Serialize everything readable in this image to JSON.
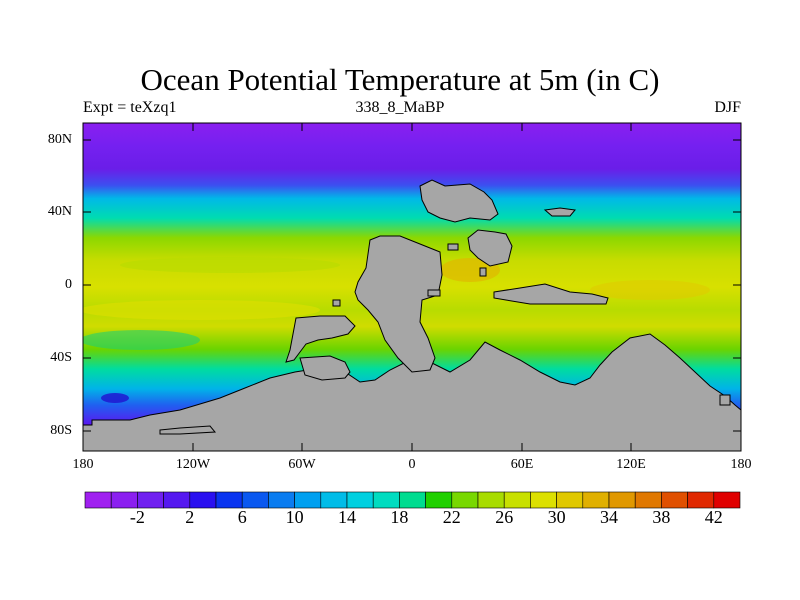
{
  "title": "Ocean Potential Temperature at 5m (in C)",
  "subtitle_left": "Expt = teXzq1",
  "subtitle_center": "338_8_MaBP",
  "subtitle_right": "DJF",
  "map": {
    "lat_labels": [
      "80N",
      "40N",
      "0",
      "40S",
      "80S"
    ],
    "lon_labels": [
      "180",
      "120W",
      "60W",
      "0",
      "60E",
      "120E",
      "180"
    ],
    "land_color": "#a6a6a6"
  },
  "colorbar": {
    "labels": [
      "-2",
      "2",
      "6",
      "10",
      "14",
      "18",
      "22",
      "26",
      "30",
      "34",
      "38",
      "42"
    ],
    "colors": [
      "#a020f0",
      "#8b1ff0",
      "#7020f0",
      "#5518f0",
      "#2a10f0",
      "#0a34f0",
      "#0a58f0",
      "#0a7cf0",
      "#00a0f0",
      "#00bce8",
      "#00d0e0",
      "#00dcc0",
      "#00dc90",
      "#20d000",
      "#78d800",
      "#a8dc00",
      "#c8e000",
      "#dce000",
      "#e0c800",
      "#e0b000",
      "#e09800",
      "#e07800",
      "#e05000",
      "#e02800",
      "#e00000"
    ]
  }
}
